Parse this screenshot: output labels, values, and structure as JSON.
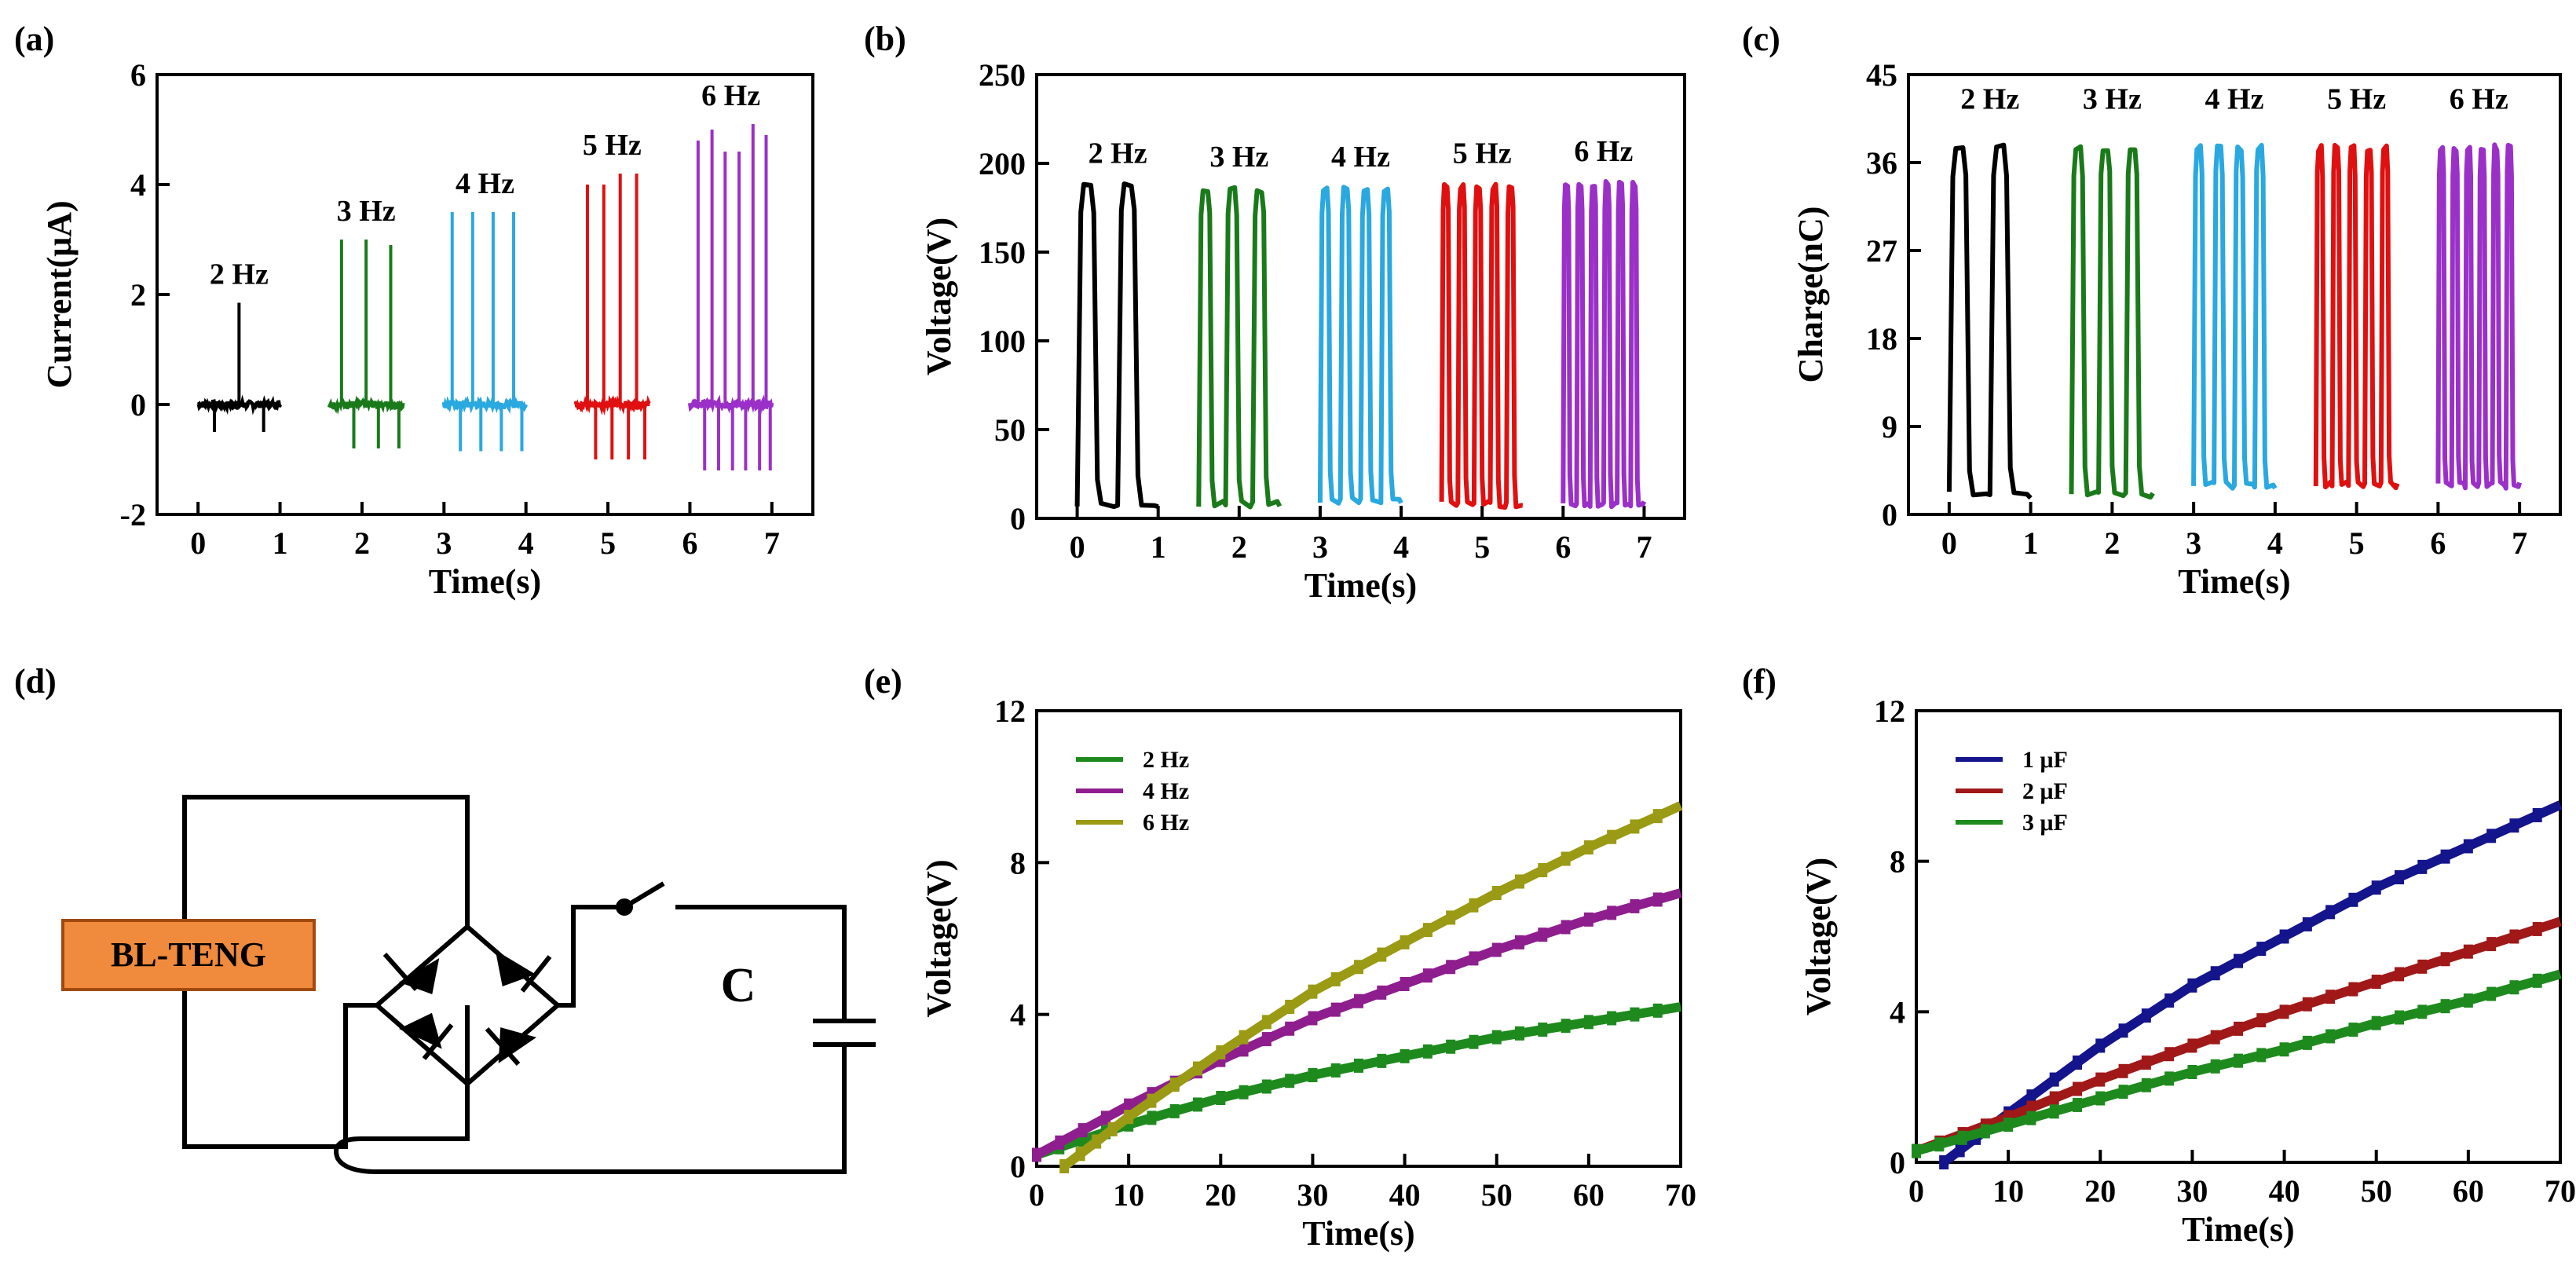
{
  "panels": {
    "a": "(a)",
    "b": "(b)",
    "c": "(c)",
    "d": "(d)",
    "e": "(e)",
    "f": "(f)"
  },
  "circuit": {
    "device_label": "BL-TENG",
    "capacitor_label": "C",
    "device_fill": "#f08a3c"
  },
  "chart_data": [
    {
      "id": "a",
      "type": "line",
      "xlabel": "Time(s)",
      "ylabel": "Current(μA)",
      "xlim": [
        -0.5,
        7.5
      ],
      "ylim": [
        -2,
        6
      ],
      "xticks": [
        0,
        1,
        2,
        3,
        4,
        5,
        6,
        7
      ],
      "yticks": [
        -2,
        0,
        2,
        4,
        6
      ],
      "groups": [
        {
          "label": "2 Hz",
          "color": "#000000",
          "t": [
            0,
            1
          ],
          "positive_peaks": [
            1.85
          ],
          "negative_peak": -0.5,
          "peak_times": [
            0.5
          ],
          "neg_times": [
            0.2,
            0.8
          ]
        },
        {
          "label": "3 Hz",
          "color": "#1a7a1a",
          "t": [
            1.6,
            2.5
          ],
          "positive_peaks": [
            3.0,
            3.0,
            2.9
          ],
          "negative_peak": -0.8,
          "peak_times": [
            1.75,
            2.05,
            2.35
          ],
          "neg_times": [
            1.9,
            2.2,
            2.45
          ]
        },
        {
          "label": "4 Hz",
          "color": "#2aa8e0",
          "t": [
            3.0,
            4.0
          ],
          "positive_peaks": [
            3.5,
            3.5,
            3.5,
            3.5
          ],
          "negative_peak": -0.85,
          "peak_times": [
            3.1,
            3.35,
            3.6,
            3.85
          ],
          "neg_times": [
            3.2,
            3.45,
            3.7,
            3.95
          ]
        },
        {
          "label": "5 Hz",
          "color": "#e01010",
          "t": [
            4.6,
            5.5
          ],
          "positive_peaks": [
            4.0,
            4.0,
            4.2,
            4.2
          ],
          "negative_peak": -1.0,
          "peak_times": [
            4.75,
            4.95,
            5.15,
            5.35
          ],
          "neg_times": [
            4.85,
            5.05,
            5.25,
            5.45
          ]
        },
        {
          "label": "6 Hz",
          "color": "#9b30c8",
          "t": [
            6.0,
            7.0
          ],
          "positive_peaks": [
            4.8,
            5.0,
            4.6,
            4.6,
            5.1,
            4.9
          ],
          "negative_peak": -1.2,
          "peak_times": [
            6.1,
            6.27,
            6.43,
            6.6,
            6.77,
            6.93
          ],
          "neg_times": [
            6.18,
            6.35,
            6.52,
            6.68,
            6.85,
            6.98
          ]
        }
      ]
    },
    {
      "id": "b",
      "type": "line",
      "xlabel": "Time(s)",
      "ylabel": "Voltage(V)",
      "xlim": [
        -0.5,
        7.5
      ],
      "ylim": [
        0,
        250
      ],
      "xticks": [
        0,
        1,
        2,
        3,
        4,
        5,
        6,
        7
      ],
      "yticks": [
        0,
        50,
        100,
        150,
        200,
        250
      ],
      "groups": [
        {
          "label": "2 Hz",
          "color": "#000000",
          "t": [
            0,
            1
          ],
          "cycles": 2,
          "high": 187,
          "low": 8
        },
        {
          "label": "3 Hz",
          "color": "#1a7a1a",
          "t": [
            1.5,
            2.5
          ],
          "cycles": 3,
          "high": 185,
          "low": 8
        },
        {
          "label": "4 Hz",
          "color": "#2aa8e0",
          "t": [
            3.0,
            4.0
          ],
          "cycles": 4,
          "high": 185,
          "low": 10
        },
        {
          "label": "5 Hz",
          "color": "#e01010",
          "t": [
            4.5,
            5.5
          ],
          "cycles": 5,
          "high": 187,
          "low": 8
        },
        {
          "label": "6 Hz",
          "color": "#9b30c8",
          "t": [
            6.0,
            7.0
          ],
          "cycles": 6,
          "high": 188,
          "low": 8
        }
      ]
    },
    {
      "id": "c",
      "type": "line",
      "xlabel": "Time(s)",
      "ylabel": "Charge(nC)",
      "xlim": [
        -0.5,
        7.5
      ],
      "ylim": [
        0,
        45
      ],
      "xticks": [
        0,
        1,
        2,
        3,
        4,
        5,
        6,
        7
      ],
      "yticks": [
        0,
        9,
        18,
        27,
        36,
        45
      ],
      "groups": [
        {
          "label": "2 Hz",
          "color": "#000000",
          "t": [
            0,
            1
          ],
          "cycles": 2,
          "high": 37.5,
          "low": 2
        },
        {
          "label": "3 Hz",
          "color": "#1a7a1a",
          "t": [
            1.5,
            2.5
          ],
          "cycles": 3,
          "high": 37.5,
          "low": 2
        },
        {
          "label": "4 Hz",
          "color": "#2aa8e0",
          "t": [
            3.0,
            4.0
          ],
          "cycles": 4,
          "high": 37.5,
          "low": 3
        },
        {
          "label": "5 Hz",
          "color": "#e01010",
          "t": [
            4.5,
            5.5
          ],
          "cycles": 5,
          "high": 37.5,
          "low": 3
        },
        {
          "label": "6 Hz",
          "color": "#9b30c8",
          "t": [
            6.0,
            7.0
          ],
          "cycles": 6,
          "high": 37.5,
          "low": 3
        }
      ]
    },
    {
      "id": "e",
      "type": "line",
      "xlabel": "Time(s)",
      "ylabel": "Voltage(V)",
      "xlim": [
        0,
        70
      ],
      "ylim": [
        0,
        12
      ],
      "xticks": [
        0,
        10,
        20,
        30,
        40,
        50,
        60,
        70
      ],
      "yticks": [
        0,
        4,
        8,
        12
      ],
      "legend": "top-left",
      "series": [
        {
          "name": "2 Hz",
          "color": "#1e8a1e",
          "x": [
            0,
            10,
            20,
            30,
            40,
            50,
            60,
            70
          ],
          "y": [
            0.3,
            1.1,
            1.8,
            2.4,
            2.9,
            3.4,
            3.8,
            4.2
          ]
        },
        {
          "name": "4 Hz",
          "color": "#8e1e8e",
          "x": [
            0,
            10,
            20,
            30,
            40,
            50,
            60,
            70
          ],
          "y": [
            0.3,
            1.6,
            2.8,
            3.9,
            4.8,
            5.7,
            6.5,
            7.2
          ]
        },
        {
          "name": "6 Hz",
          "color": "#9a9a14",
          "x": [
            3,
            10,
            20,
            30,
            40,
            50,
            60,
            70
          ],
          "y": [
            0.0,
            1.3,
            3.0,
            4.6,
            5.9,
            7.2,
            8.4,
            9.5
          ]
        }
      ]
    },
    {
      "id": "f",
      "type": "line",
      "xlabel": "Time(s)",
      "ylabel": "Voltage(V)",
      "xlim": [
        0,
        70
      ],
      "ylim": [
        0,
        12
      ],
      "xticks": [
        0,
        10,
        20,
        30,
        40,
        50,
        60,
        70
      ],
      "yticks": [
        0,
        4,
        8,
        12
      ],
      "legend": "top-left",
      "series": [
        {
          "name": "1 μF",
          "color": "#14148c",
          "x": [
            3,
            10,
            20,
            30,
            40,
            50,
            60,
            70
          ],
          "y": [
            0.0,
            1.3,
            3.1,
            4.7,
            6.0,
            7.3,
            8.4,
            9.5
          ]
        },
        {
          "name": "2 μF",
          "color": "#a01818",
          "x": [
            0,
            10,
            20,
            30,
            40,
            50,
            60,
            70
          ],
          "y": [
            0.3,
            1.2,
            2.2,
            3.1,
            4.0,
            4.8,
            5.6,
            6.4
          ]
        },
        {
          "name": "3 μF",
          "color": "#1e8a1e",
          "x": [
            0,
            10,
            20,
            30,
            40,
            50,
            60,
            70
          ],
          "y": [
            0.3,
            1.0,
            1.7,
            2.4,
            3.0,
            3.7,
            4.3,
            5.0
          ]
        }
      ]
    }
  ]
}
